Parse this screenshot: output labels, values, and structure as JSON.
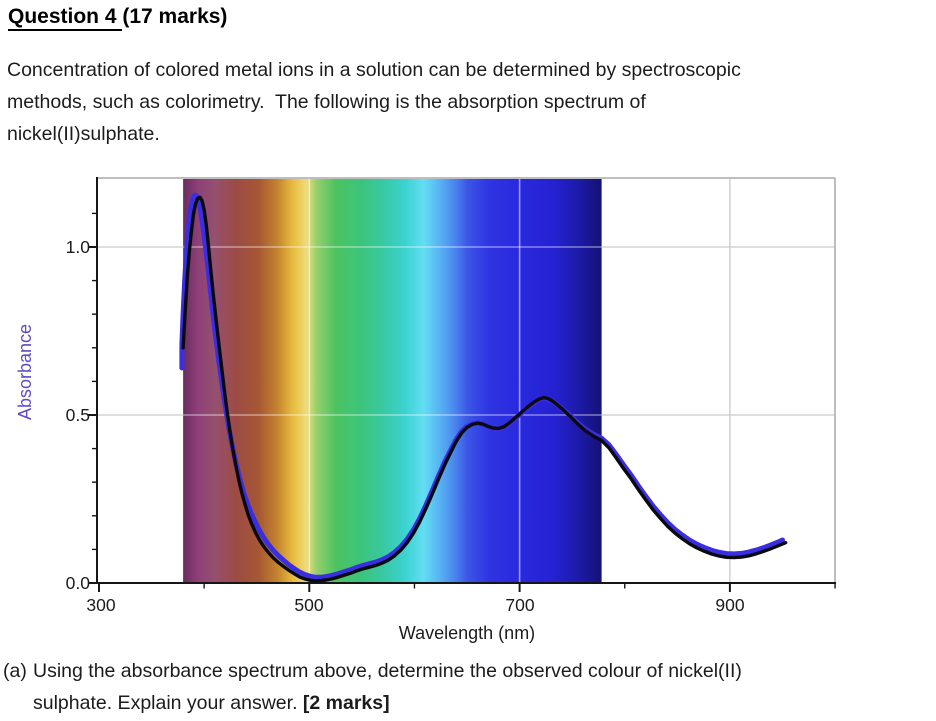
{
  "header": {
    "title_underlined": "Question 4 ",
    "title_rest": "(17 marks)"
  },
  "intro": {
    "lines": [
      "Concentration of colored metal ions in a solution can be determined by spectroscopic",
      "methods, such as colorimetry.  The following is the absorption spectrum of",
      "nickel(II)sulphate."
    ]
  },
  "question_a": {
    "label": "(a)",
    "line1": "Using the absorbance spectrum above, determine the observed colour of nickel(II)",
    "line2_normal": "sulphate. Explain your answer. ",
    "line2_bold": "[2 marks]"
  },
  "chart_data": {
    "type": "line",
    "xlabel": "Wavelength (nm)",
    "ylabel": "Absorbance",
    "ylabel_color": "#5e4bc8",
    "xlim": [
      298,
      1002
    ],
    "ylim": [
      0,
      1.205
    ],
    "x_ticks": [
      300,
      500,
      700,
      900
    ],
    "x_tick_labels": [
      "300",
      "500",
      "700",
      "900"
    ],
    "x_minor_ticks": [
      400,
      600,
      800,
      1000
    ],
    "y_ticks": [
      0.0,
      0.5,
      1.0
    ],
    "y_tick_labels": [
      "0.0",
      "0.5",
      "1.0"
    ],
    "y_minor_ticks": [
      0.1,
      0.2,
      0.3,
      0.4,
      0.6,
      0.7,
      0.8,
      0.9,
      1.1
    ],
    "grid_x": [
      500,
      700,
      900
    ],
    "grid_y": [
      0.5,
      1.0
    ],
    "grid_on": true,
    "legend": "none",
    "visible_spectrum_band_nm": [
      380,
      778
    ],
    "band_stops": [
      {
        "off": 0.0,
        "c": "#692c60"
      },
      {
        "off": 0.035,
        "c": "#8e4078"
      },
      {
        "off": 0.075,
        "c": "#95506f"
      },
      {
        "off": 0.125,
        "c": "#9c4b45"
      },
      {
        "off": 0.18,
        "c": "#a65733"
      },
      {
        "off": 0.225,
        "c": "#c5832f"
      },
      {
        "off": 0.262,
        "c": "#e7bb3f"
      },
      {
        "off": 0.295,
        "c": "#eedc7a"
      },
      {
        "off": 0.32,
        "c": "#93cf6d"
      },
      {
        "off": 0.365,
        "c": "#4cc360"
      },
      {
        "off": 0.425,
        "c": "#3cc47b"
      },
      {
        "off": 0.48,
        "c": "#38c9a4"
      },
      {
        "off": 0.53,
        "c": "#3cd2d0"
      },
      {
        "off": 0.575,
        "c": "#62def2"
      },
      {
        "off": 0.615,
        "c": "#57b0f2"
      },
      {
        "off": 0.645,
        "c": "#4b8cee"
      },
      {
        "off": 0.68,
        "c": "#3c55e6"
      },
      {
        "off": 0.73,
        "c": "#2f35e2"
      },
      {
        "off": 0.8,
        "c": "#2929de"
      },
      {
        "off": 0.885,
        "c": "#2522d2"
      },
      {
        "off": 0.945,
        "c": "#1d1ba8"
      },
      {
        "off": 1.0,
        "c": "#141173"
      }
    ],
    "series": [
      {
        "name": "trace-blue",
        "color": "#3b2ee0",
        "width": 5,
        "points": [
          [
            378.8,
            0.64
          ],
          [
            378.8,
            0.71
          ],
          [
            380,
            0.8
          ],
          [
            381.5,
            0.9
          ],
          [
            383,
            0.98
          ],
          [
            385,
            1.06
          ],
          [
            387,
            1.112
          ],
          [
            389,
            1.142
          ],
          [
            391,
            1.154
          ],
          [
            393,
            1.152
          ],
          [
            395,
            1.135
          ],
          [
            397,
            1.1
          ],
          [
            399,
            1.055
          ],
          [
            401.5,
            0.995
          ],
          [
            404,
            0.925
          ],
          [
            407,
            0.84
          ],
          [
            410,
            0.755
          ],
          [
            413.5,
            0.672
          ],
          [
            417,
            0.592
          ],
          [
            420.5,
            0.518
          ],
          [
            424,
            0.453
          ],
          [
            427.5,
            0.396
          ],
          [
            431,
            0.347
          ],
          [
            434.5,
            0.303
          ],
          [
            438,
            0.265
          ],
          [
            441.5,
            0.233
          ],
          [
            445,
            0.206
          ],
          [
            449,
            0.178
          ],
          [
            453,
            0.154
          ],
          [
            457,
            0.133
          ],
          [
            461,
            0.115
          ],
          [
            466,
            0.096
          ],
          [
            471,
            0.08
          ],
          [
            476,
            0.066
          ],
          [
            481,
            0.053
          ],
          [
            486,
            0.042
          ],
          [
            491,
            0.032
          ],
          [
            496,
            0.025
          ],
          [
            501,
            0.02
          ],
          [
            506,
            0.017
          ],
          [
            511,
            0.017
          ],
          [
            516,
            0.019
          ],
          [
            521,
            0.022
          ],
          [
            527,
            0.027
          ],
          [
            533,
            0.033
          ],
          [
            539,
            0.039
          ],
          [
            545,
            0.046
          ],
          [
            551,
            0.052
          ],
          [
            557,
            0.057
          ],
          [
            563,
            0.062
          ],
          [
            569,
            0.069
          ],
          [
            575,
            0.078
          ],
          [
            581,
            0.091
          ],
          [
            587,
            0.108
          ],
          [
            593,
            0.13
          ],
          [
            599,
            0.158
          ],
          [
            605,
            0.192
          ],
          [
            611,
            0.232
          ],
          [
            617,
            0.275
          ],
          [
            623,
            0.319
          ],
          [
            629,
            0.361
          ],
          [
            635,
            0.399
          ],
          [
            640,
            0.429
          ],
          [
            645,
            0.452
          ],
          [
            650,
            0.466
          ],
          [
            655,
            0.474
          ],
          [
            660,
            0.477
          ],
          [
            665,
            0.473
          ],
          [
            670,
            0.465
          ],
          [
            675,
            0.459
          ],
          [
            680,
            0.458
          ],
          [
            685,
            0.463
          ],
          [
            690,
            0.474
          ],
          [
            695,
            0.487
          ],
          [
            700,
            0.501
          ],
          [
            705,
            0.515
          ],
          [
            710,
            0.528
          ],
          [
            715,
            0.539
          ],
          [
            719,
            0.546
          ],
          [
            723,
            0.55
          ],
          [
            727,
            0.547
          ],
          [
            731,
            0.541
          ],
          [
            736,
            0.53
          ],
          [
            741,
            0.518
          ],
          [
            748,
            0.499
          ],
          [
            755,
            0.478
          ],
          [
            763,
            0.457
          ],
          [
            771,
            0.442
          ],
          [
            778,
            0.431
          ],
          [
            785,
            0.411
          ],
          [
            792,
            0.382
          ],
          [
            799,
            0.351
          ],
          [
            806,
            0.321
          ],
          [
            813,
            0.289
          ],
          [
            820,
            0.258
          ],
          [
            827,
            0.229
          ],
          [
            834,
            0.203
          ],
          [
            841,
            0.179
          ],
          [
            848,
            0.159
          ],
          [
            855,
            0.142
          ],
          [
            862,
            0.127
          ],
          [
            869,
            0.115
          ],
          [
            876,
            0.105
          ],
          [
            883,
            0.097
          ],
          [
            890,
            0.091
          ],
          [
            897,
            0.0875
          ],
          [
            904,
            0.0865
          ],
          [
            911,
            0.088
          ],
          [
            918,
            0.092
          ],
          [
            925,
            0.098
          ],
          [
            932,
            0.105
          ],
          [
            939,
            0.113
          ],
          [
            946,
            0.122
          ],
          [
            950,
            0.128
          ]
        ]
      },
      {
        "name": "trace-black",
        "color": "#0a0a12",
        "width": 3.4,
        "points": [
          [
            380,
            0.7
          ],
          [
            382,
            0.81
          ],
          [
            384,
            0.91
          ],
          [
            386,
            0.99
          ],
          [
            388,
            1.05
          ],
          [
            390,
            1.1
          ],
          [
            392,
            1.13
          ],
          [
            394,
            1.145
          ],
          [
            396,
            1.148
          ],
          [
            398,
            1.138
          ],
          [
            400,
            1.11
          ],
          [
            402,
            1.065
          ],
          [
            404,
            1.005
          ],
          [
            406,
            0.94
          ],
          [
            409,
            0.85
          ],
          [
            412,
            0.765
          ],
          [
            415,
            0.685
          ],
          [
            418,
            0.605
          ],
          [
            421,
            0.53
          ],
          [
            424,
            0.462
          ],
          [
            427,
            0.403
          ],
          [
            430,
            0.352
          ],
          [
            433,
            0.306
          ],
          [
            436,
            0.266
          ],
          [
            439,
            0.232
          ],
          [
            442,
            0.202
          ],
          [
            445,
            0.177
          ],
          [
            449,
            0.149
          ],
          [
            453,
            0.126
          ],
          [
            457,
            0.107
          ],
          [
            461,
            0.091
          ],
          [
            466,
            0.074
          ],
          [
            471,
            0.06
          ],
          [
            476,
            0.048
          ],
          [
            481,
            0.037
          ],
          [
            486,
            0.027
          ],
          [
            491,
            0.018
          ],
          [
            496,
            0.012
          ],
          [
            501,
            0.008
          ],
          [
            506,
            0.006
          ],
          [
            511,
            0.007
          ],
          [
            516,
            0.009
          ],
          [
            521,
            0.012
          ],
          [
            527,
            0.017
          ],
          [
            533,
            0.023
          ],
          [
            539,
            0.029
          ],
          [
            545,
            0.036
          ],
          [
            551,
            0.042
          ],
          [
            557,
            0.047
          ],
          [
            563,
            0.052
          ],
          [
            569,
            0.059
          ],
          [
            575,
            0.068
          ],
          [
            581,
            0.081
          ],
          [
            587,
            0.098
          ],
          [
            593,
            0.12
          ],
          [
            599,
            0.148
          ],
          [
            605,
            0.182
          ],
          [
            611,
            0.222
          ],
          [
            617,
            0.265
          ],
          [
            623,
            0.31
          ],
          [
            629,
            0.353
          ],
          [
            635,
            0.392
          ],
          [
            640,
            0.423
          ],
          [
            645,
            0.447
          ],
          [
            650,
            0.463
          ],
          [
            655,
            0.472
          ],
          [
            660,
            0.476
          ],
          [
            665,
            0.473
          ],
          [
            670,
            0.466
          ],
          [
            675,
            0.461
          ],
          [
            680,
            0.46
          ],
          [
            685,
            0.465
          ],
          [
            690,
            0.476
          ],
          [
            695,
            0.489
          ],
          [
            700,
            0.503
          ],
          [
            705,
            0.517
          ],
          [
            710,
            0.53
          ],
          [
            715,
            0.541
          ],
          [
            719,
            0.548
          ],
          [
            723,
            0.552
          ],
          [
            727,
            0.549
          ],
          [
            731,
            0.542
          ],
          [
            736,
            0.53
          ],
          [
            741,
            0.517
          ],
          [
            748,
            0.496
          ],
          [
            755,
            0.474
          ],
          [
            763,
            0.452
          ],
          [
            771,
            0.436
          ],
          [
            778,
            0.424
          ],
          [
            785,
            0.402
          ],
          [
            792,
            0.372
          ],
          [
            799,
            0.34
          ],
          [
            806,
            0.31
          ],
          [
            813,
            0.278
          ],
          [
            820,
            0.247
          ],
          [
            827,
            0.218
          ],
          [
            834,
            0.192
          ],
          [
            841,
            0.168
          ],
          [
            848,
            0.148
          ],
          [
            855,
            0.131
          ],
          [
            862,
            0.116
          ],
          [
            869,
            0.104
          ],
          [
            876,
            0.094
          ],
          [
            883,
            0.086
          ],
          [
            890,
            0.08
          ],
          [
            897,
            0.0765
          ],
          [
            904,
            0.0755
          ],
          [
            911,
            0.077
          ],
          [
            918,
            0.081
          ],
          [
            925,
            0.087
          ],
          [
            932,
            0.094
          ],
          [
            939,
            0.102
          ],
          [
            946,
            0.111
          ],
          [
            953,
            0.12
          ]
        ]
      }
    ]
  }
}
